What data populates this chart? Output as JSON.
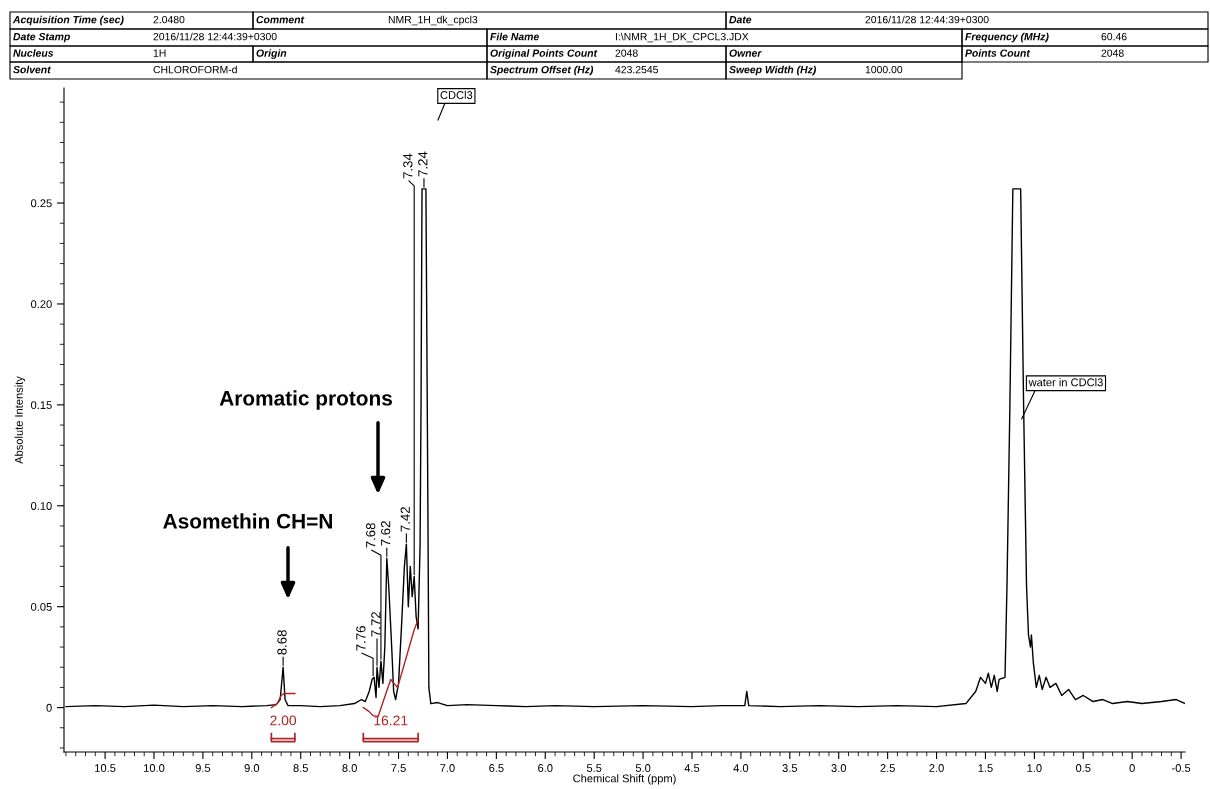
{
  "chart_data": {
    "type": "line",
    "xlabel": "Chemical Shift (ppm)",
    "ylabel": "Absolute Intensity",
    "xlim": [
      10.92,
      -0.54
    ],
    "ylim": [
      -0.022,
      0.307
    ],
    "xticks": [
      {
        "value": 10.5,
        "label": "10.5"
      },
      {
        "value": 10,
        "label": "10.0"
      },
      {
        "value": 9.5,
        "label": "9.5"
      },
      {
        "value": 9,
        "label": "9.0"
      },
      {
        "value": 8.5,
        "label": "8.5"
      },
      {
        "value": 8,
        "label": "8.0"
      },
      {
        "value": 7.5,
        "label": "7.5"
      },
      {
        "value": 7,
        "label": "7.0"
      },
      {
        "value": 6.5,
        "label": "6.5"
      },
      {
        "value": 6,
        "label": "6.0"
      },
      {
        "value": 5.5,
        "label": "5.5"
      },
      {
        "value": 5,
        "label": "5.0"
      },
      {
        "value": 4.5,
        "label": "4.5"
      },
      {
        "value": 4,
        "label": "4.0"
      },
      {
        "value": 3.5,
        "label": "3.5"
      },
      {
        "value": 3,
        "label": "3.0"
      },
      {
        "value": 2.5,
        "label": "2.5"
      },
      {
        "value": 2,
        "label": "2.0"
      },
      {
        "value": 1.5,
        "label": "1.5"
      },
      {
        "value": 1,
        "label": "1.0"
      },
      {
        "value": 0.5,
        "label": "0.5"
      },
      {
        "value": 0,
        "label": "0"
      },
      {
        "value": -0.5,
        "label": "-0.5"
      }
    ],
    "yticks": [
      0,
      {
        "value": 0.05,
        "label": "0.05"
      },
      {
        "value": 0.1,
        "label": "0.10"
      },
      {
        "value": 0.15,
        "label": "0.15"
      },
      {
        "value": 0.2,
        "label": "0.20"
      },
      {
        "value": 0.25,
        "label": "0.25"
      }
    ],
    "grid": false,
    "series": [
      {
        "color": "#000000",
        "x": [
          10.9,
          10.6,
          10.3,
          10.0,
          9.7,
          9.4,
          9.1,
          8.85,
          8.75,
          8.71,
          8.68,
          8.66,
          8.63,
          8.5,
          8.3,
          8.1,
          7.95,
          7.88,
          7.84,
          7.8,
          7.77,
          7.75,
          7.73,
          7.72,
          7.7,
          7.68,
          7.66,
          7.64,
          7.62,
          7.6,
          7.57,
          7.55,
          7.53,
          7.5,
          7.47,
          7.44,
          7.42,
          7.4,
          7.38,
          7.36,
          7.34,
          7.32,
          7.3,
          7.28,
          7.27,
          7.26,
          7.22,
          7.2,
          7.19,
          7.17,
          7.1,
          7.0,
          6.8,
          6.5,
          6.2,
          5.9,
          5.5,
          5.0,
          4.5,
          4.2,
          3.96,
          3.94,
          3.92,
          3.6,
          3.2,
          2.8,
          2.4,
          2.0,
          1.7,
          1.6,
          1.55,
          1.5,
          1.47,
          1.44,
          1.41,
          1.38,
          1.36,
          1.3,
          1.28,
          1.25,
          1.22,
          1.14,
          1.11,
          1.08,
          1.06,
          1.04,
          1.03,
          1.01,
          0.98,
          0.95,
          0.92,
          0.88,
          0.84,
          0.78,
          0.72,
          0.65,
          0.58,
          0.5,
          0.4,
          0.3,
          0.2,
          0.05,
          -0.1,
          -0.3,
          -0.45,
          -0.54
        ],
        "values": [
          0.0005,
          0.001,
          0.0005,
          0.0012,
          0.0005,
          0.001,
          0.0005,
          0.001,
          0.0015,
          0.004,
          0.02,
          0.004,
          0.001,
          0.001,
          0.0005,
          0.001,
          0.002,
          0.004,
          0.003,
          0.008,
          0.014,
          0.015,
          0.005,
          0.02,
          0.01,
          0.023,
          0.012,
          0.03,
          0.074,
          0.06,
          0.03,
          0.008,
          0.004,
          0.012,
          0.04,
          0.07,
          0.081,
          0.05,
          0.07,
          0.055,
          0.065,
          0.045,
          0.039,
          0.08,
          0.15,
          0.257,
          0.257,
          0.1,
          0.01,
          0.002,
          0.0025,
          0.001,
          0.0015,
          0.001,
          0.0005,
          0.001,
          0.0005,
          0.001,
          0.0005,
          0.001,
          0.001,
          0.008,
          0.001,
          0.0005,
          0.001,
          0.0005,
          0.001,
          0.0005,
          0.002,
          0.008,
          0.015,
          0.012,
          0.017,
          0.01,
          0.016,
          0.008,
          0.014,
          0.015,
          0.06,
          0.15,
          0.257,
          0.257,
          0.15,
          0.06,
          0.036,
          0.03,
          0.036,
          0.022,
          0.01,
          0.016,
          0.009,
          0.015,
          0.01,
          0.012,
          0.006,
          0.009,
          0.004,
          0.006,
          0.003,
          0.004,
          0.002,
          0.003,
          0.002,
          0.003,
          0.004,
          0.002
        ]
      },
      {
        "color": "#b22222",
        "x": [
          8.8,
          8.74,
          8.7,
          8.67,
          8.56
        ],
        "values": [
          0.0,
          0.002,
          0.006,
          0.007,
          0.007
        ]
      },
      {
        "color": "#b22222",
        "x": [
          7.86,
          7.8,
          7.76,
          7.71,
          7.58,
          7.51,
          7.34,
          7.3
        ],
        "values": [
          0.0,
          -0.002,
          -0.004,
          -0.0045,
          0.0139,
          0.0099,
          0.0386,
          0.0436
        ]
      }
    ],
    "annotations": [
      "Acquisition Time (sec)",
      "2.0480",
      "Comment",
      "NMR_1H_dk_cpcl3",
      "Date",
      "2016/11/28 12:44:39+0300",
      "Date Stamp",
      "2016/11/28 12:44:39+0300",
      "File Name",
      "I:\\NMR_1H_DK_CPCL3.JDX",
      "Frequency (MHz)",
      "60.46",
      "Nucleus",
      "1H",
      "Origin",
      "Original Points Count",
      "2048",
      "Owner",
      "Points Count",
      "2048",
      "Solvent",
      "CHLOROFORM-d",
      "Spectrum Offset (Hz)",
      "423.2545",
      "Sweep Width (Hz)",
      "1000.00",
      "Aromatic protons",
      "Asomethin CH=N",
      "CDCl3",
      "2.00",
      "16.21",
      {
        "text": "water in CDCl3",
        "x": 1.13,
        "y": 0.143
      },
      {
        "text": "8.68",
        "x": 8.68,
        "y": 0.02
      },
      {
        "text": "7.76",
        "x": 7.76,
        "y": 0.015
      },
      {
        "text": "7.72",
        "x": 7.72,
        "y": 0.02
      },
      {
        "text": "7.68",
        "x": 7.68,
        "y": 0.023
      },
      {
        "text": "7.62",
        "x": 7.62,
        "y": 0.074
      },
      {
        "text": "7.42",
        "x": 7.42,
        "y": 0.081
      },
      {
        "text": "7.34",
        "x": 7.34,
        "y": 0.065
      },
      {
        "text": "7.24",
        "x": 7.24,
        "y": 0.257
      }
    ]
  }
}
